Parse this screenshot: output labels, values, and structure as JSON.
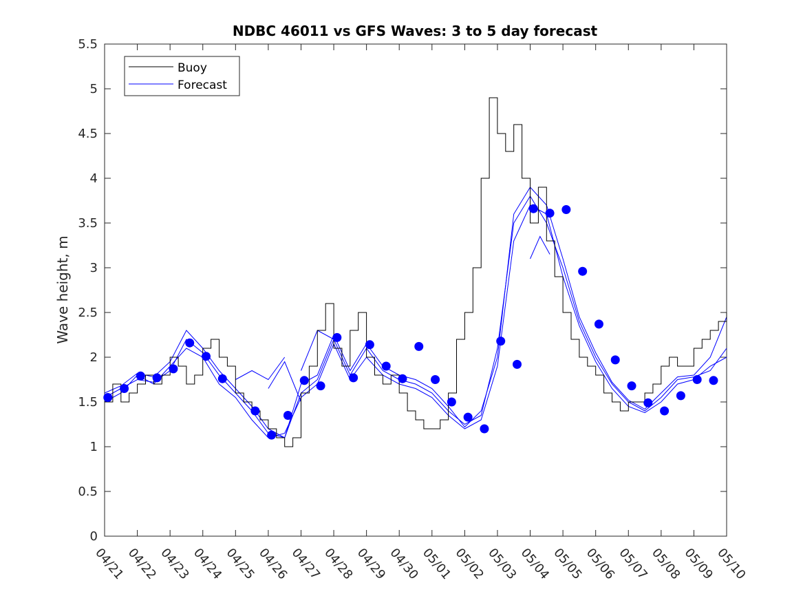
{
  "chart_data": {
    "type": "line",
    "title": "NDBC 46011 vs GFS Waves: 3 to 5 day forecast",
    "ylabel": "Wave height, m",
    "xlabel": "",
    "ylim": [
      0,
      5.5
    ],
    "xlim": [
      "04/21",
      "05/10"
    ],
    "yticks": [
      0,
      0.5,
      1,
      1.5,
      2,
      2.5,
      3,
      3.5,
      4,
      4.5,
      5,
      5.5
    ],
    "ytick_labels": [
      "0",
      "0.5",
      "1",
      "1.5",
      "2",
      "2.5",
      "3",
      "3.5",
      "4",
      "4.5",
      "5",
      "5.5"
    ],
    "xtick_labels": [
      "04/21",
      "04/22",
      "04/23",
      "04/24",
      "04/25",
      "04/26",
      "04/27",
      "04/28",
      "04/29",
      "04/30",
      "05/01",
      "05/02",
      "05/03",
      "05/04",
      "05/05",
      "05/06",
      "05/07",
      "05/08",
      "05/09",
      "05/10"
    ],
    "grid": false,
    "legend": {
      "position": "top-left",
      "entries": [
        "Buoy",
        "Forecast"
      ]
    },
    "colors": {
      "buoy": "#000000",
      "forecast": "#0000ff"
    },
    "buoy": {
      "name": "Buoy",
      "x": [
        0,
        0.25,
        0.5,
        0.75,
        1,
        1.25,
        1.5,
        1.75,
        2,
        2.25,
        2.5,
        2.75,
        3,
        3.25,
        3.5,
        3.75,
        4,
        4.25,
        4.5,
        4.75,
        5,
        5.25,
        5.5,
        5.75,
        6,
        6.25,
        6.5,
        6.75,
        7,
        7.25,
        7.5,
        7.75,
        8,
        8.25,
        8.5,
        8.75,
        9,
        9.25,
        9.5,
        9.75,
        10,
        10.25,
        10.5,
        10.75,
        11,
        11.25,
        11.5,
        11.75,
        12,
        12.25,
        12.5,
        12.75,
        13,
        13.25,
        13.5,
        13.75,
        14,
        14.25,
        14.5,
        14.75,
        15,
        15.25,
        15.5,
        15.75,
        16,
        16.25,
        16.5,
        16.75,
        17,
        17.25,
        17.5,
        17.75,
        18,
        18.25,
        18.5,
        18.75,
        19
      ],
      "y": [
        1.5,
        1.7,
        1.5,
        1.6,
        1.7,
        1.8,
        1.7,
        1.8,
        2.0,
        1.9,
        1.7,
        1.8,
        2.1,
        2.2,
        2.0,
        1.9,
        1.6,
        1.5,
        1.4,
        1.3,
        1.2,
        1.1,
        1.0,
        1.1,
        1.6,
        1.9,
        2.3,
        2.6,
        2.1,
        1.9,
        2.3,
        2.5,
        2.0,
        1.8,
        1.7,
        1.8,
        1.6,
        1.4,
        1.3,
        1.2,
        1.2,
        1.3,
        1.6,
        2.2,
        2.5,
        3.0,
        4.0,
        4.9,
        4.5,
        4.3,
        4.6,
        4.0,
        3.5,
        3.9,
        3.3,
        2.9,
        2.5,
        2.2,
        2.0,
        1.9,
        1.8,
        1.6,
        1.5,
        1.4,
        1.5,
        1.5,
        1.6,
        1.7,
        1.9,
        2.0,
        1.9,
        1.9,
        2.1,
        2.2,
        2.3,
        2.4,
        2.5
      ]
    },
    "forecast_markers": {
      "name": "Forecast",
      "x": [
        0.1,
        0.6,
        1.1,
        1.6,
        2.1,
        2.6,
        3.1,
        3.6,
        4.6,
        5.1,
        5.6,
        6.1,
        6.6,
        7.1,
        7.6,
        8.1,
        8.6,
        9.1,
        9.6,
        10.1,
        10.6,
        11.1,
        11.6,
        12.1,
        12.6,
        13.1,
        13.6,
        14.1,
        14.6,
        15.1,
        15.6,
        16.1,
        16.6,
        17.1,
        17.6,
        18.1,
        18.6
      ],
      "y": [
        1.55,
        1.65,
        1.79,
        1.77,
        1.87,
        2.16,
        2.01,
        1.76,
        1.4,
        1.13,
        1.35,
        1.74,
        1.68,
        2.22,
        1.77,
        2.14,
        1.9,
        1.76,
        2.12,
        1.75,
        1.5,
        1.33,
        1.2,
        2.18,
        1.92,
        3.66,
        3.61,
        3.65,
        2.96,
        2.37,
        1.97,
        1.68,
        1.49,
        1.4,
        1.57,
        1.75,
        1.74
      ]
    },
    "forecast_series": [
      {
        "x": [
          0,
          0.5,
          1,
          1.5,
          2,
          2.5,
          3,
          3.5,
          4,
          4.5,
          5,
          5.5,
          6,
          6.5,
          7,
          7.5,
          8,
          8.5,
          9,
          9.5,
          10,
          10.5,
          11,
          11.5,
          12,
          12.5,
          13,
          13.5,
          14,
          14.5,
          15,
          15.5,
          16,
          16.5,
          17,
          17.5,
          18,
          18.5,
          19
        ],
        "y": [
          1.55,
          1.65,
          1.75,
          1.72,
          1.85,
          2.2,
          2.05,
          1.8,
          1.6,
          1.4,
          1.15,
          1.1,
          1.6,
          1.75,
          2.2,
          1.8,
          2.1,
          1.85,
          1.75,
          1.7,
          1.6,
          1.4,
          1.25,
          1.35,
          2.1,
          3.5,
          3.8,
          3.5,
          3.0,
          2.4,
          2.0,
          1.7,
          1.5,
          1.4,
          1.55,
          1.75,
          1.78,
          1.85,
          2.1
        ]
      },
      {
        "x": [
          0,
          0.5,
          1,
          1.5,
          2,
          2.5,
          3,
          3.5,
          4,
          4.5,
          5,
          5.5,
          6,
          6.5,
          7,
          7.5,
          8,
          8.5,
          9,
          9.5,
          10,
          10.5,
          11,
          11.5,
          12,
          12.5,
          13,
          13.5,
          14,
          14.5,
          15,
          15.5,
          16,
          16.5,
          17,
          17.5,
          18,
          18.5,
          19
        ],
        "y": [
          1.5,
          1.6,
          1.8,
          1.7,
          1.9,
          2.1,
          2.0,
          1.7,
          1.55,
          1.3,
          1.1,
          1.15,
          1.55,
          1.7,
          2.15,
          1.75,
          2.0,
          1.8,
          1.7,
          1.65,
          1.55,
          1.35,
          1.2,
          1.3,
          1.9,
          3.3,
          3.7,
          3.6,
          2.9,
          2.35,
          1.95,
          1.65,
          1.45,
          1.38,
          1.5,
          1.7,
          1.75,
          1.9,
          2.0
        ]
      },
      {
        "x": [
          0,
          0.5,
          1,
          1.5,
          2,
          2.5,
          3,
          3.5,
          4,
          4.5,
          5,
          5.5,
          6,
          6.5,
          7,
          7.5,
          8,
          8.5,
          9,
          9.5,
          10,
          10.5,
          11,
          11.5,
          12,
          12.5,
          13,
          13.5,
          14,
          14.5,
          15,
          15.5,
          16,
          16.5,
          17,
          17.5,
          18,
          18.5,
          19
        ],
        "y": [
          1.6,
          1.68,
          1.82,
          1.78,
          1.95,
          2.3,
          2.1,
          1.85,
          1.65,
          1.45,
          1.2,
          1.1,
          1.7,
          1.8,
          2.25,
          1.85,
          2.15,
          1.9,
          1.8,
          1.75,
          1.65,
          1.45,
          1.22,
          1.4,
          2.0,
          3.6,
          3.9,
          3.7,
          3.1,
          2.45,
          2.05,
          1.72,
          1.52,
          1.42,
          1.6,
          1.78,
          1.8,
          2.0,
          2.45
        ]
      },
      {
        "x": [
          4.0,
          4.5,
          5.0,
          5.5
        ],
        "y": [
          1.75,
          1.85,
          1.75,
          2.0
        ]
      },
      {
        "x": [
          5.0,
          5.5,
          6.0
        ],
        "y": [
          1.65,
          1.95,
          1.5
        ]
      },
      {
        "x": [
          6.0,
          6.5,
          7.0
        ],
        "y": [
          1.85,
          2.3,
          2.2
        ]
      },
      {
        "x": [
          13.0,
          13.3,
          13.6
        ],
        "y": [
          3.1,
          3.35,
          3.15
        ]
      }
    ]
  }
}
